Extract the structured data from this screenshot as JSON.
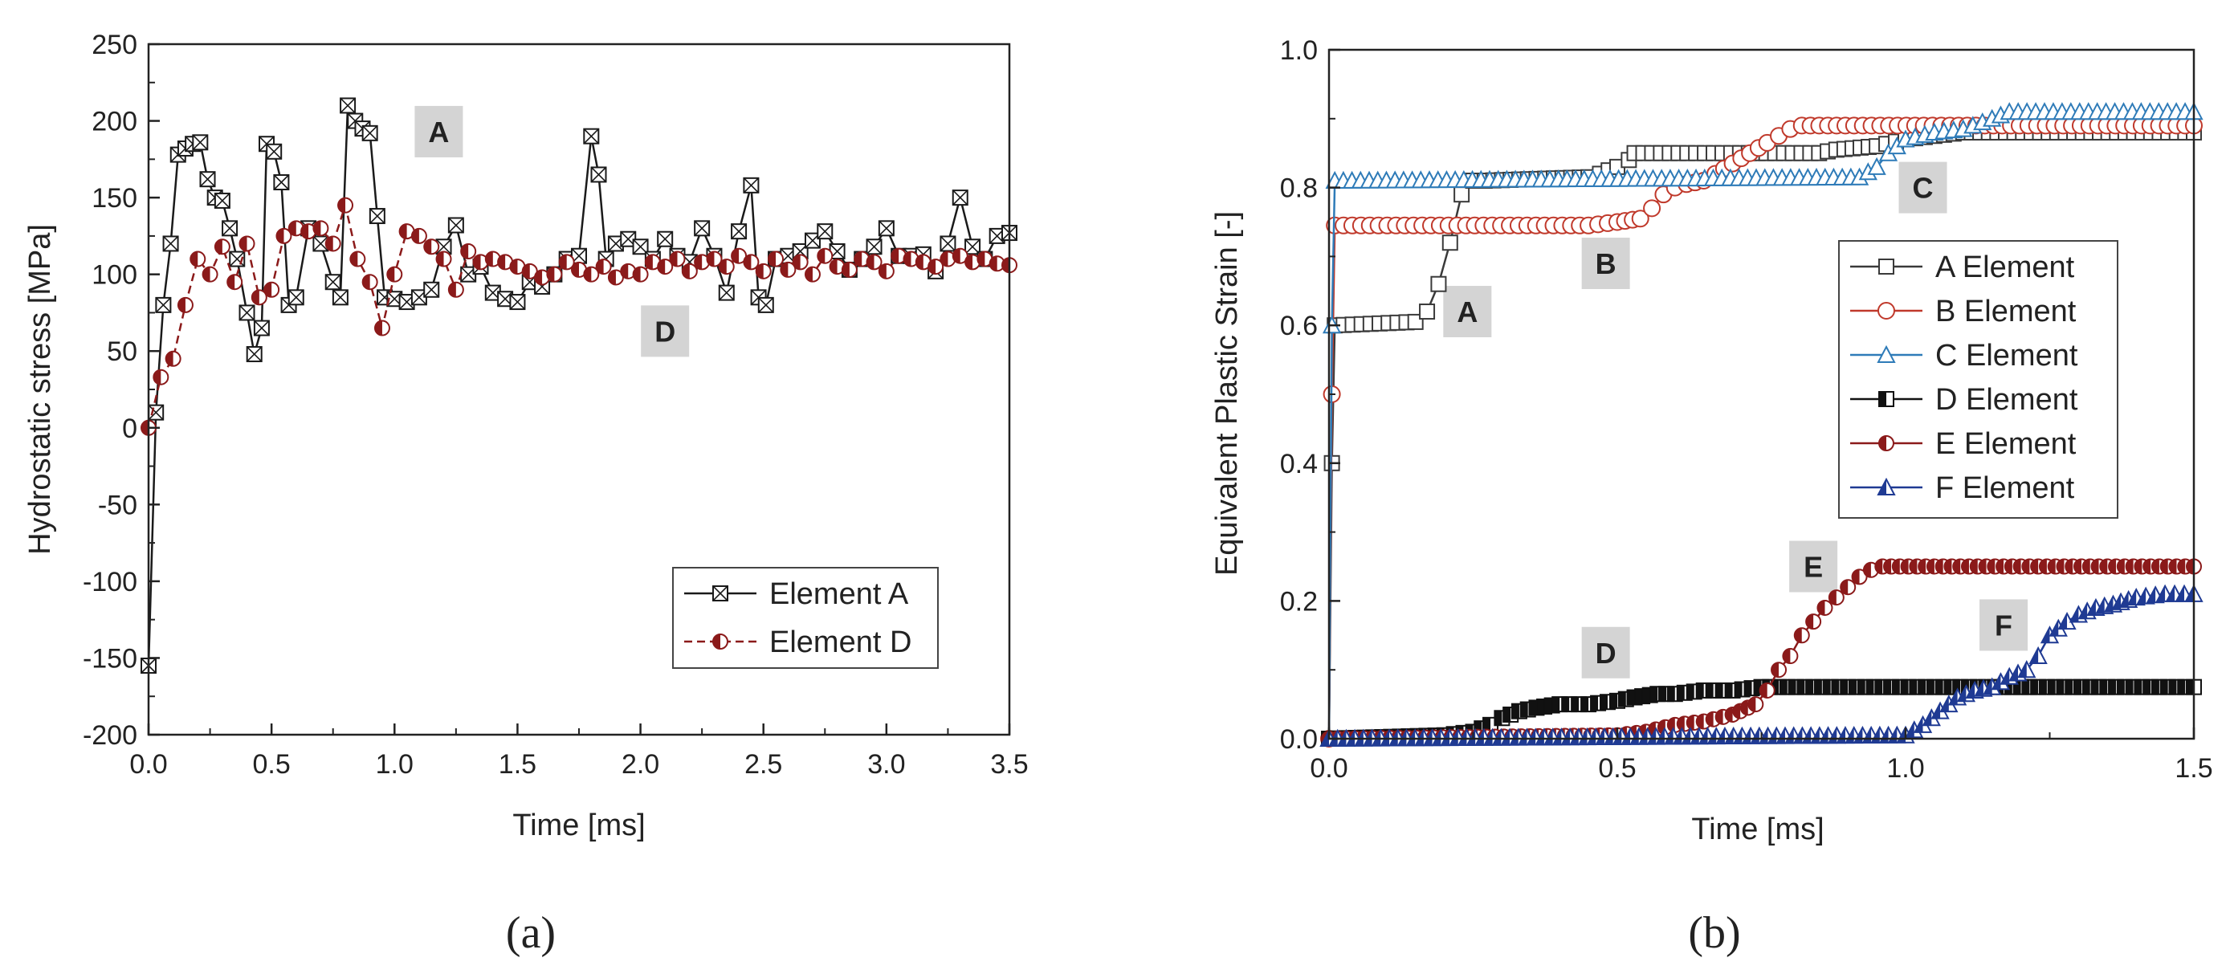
{
  "chart_data": [
    {
      "id": "a",
      "type": "line",
      "panel_label": "(a)",
      "xlabel": "Time [ms]",
      "ylabel": "Hydrostatic stress [MPa]",
      "xlim": [
        0,
        3.5
      ],
      "ylim": [
        -200,
        250
      ],
      "xticks": [
        0.0,
        0.5,
        1.0,
        1.5,
        2.0,
        2.5,
        3.0,
        3.5
      ],
      "yticks": [
        -200,
        -150,
        -100,
        -50,
        0,
        50,
        100,
        150,
        200,
        250
      ],
      "xtick_labels": [
        "0.0",
        "0.5",
        "1.0",
        "1.5",
        "2.0",
        "2.5",
        "3.0",
        "3.5"
      ],
      "ytick_labels": [
        "-200",
        "-150",
        "-100",
        "-50",
        "0",
        "50",
        "100",
        "150",
        "200",
        "250"
      ],
      "grid": false,
      "legend_position": "bottom-right",
      "annotations": [
        {
          "text": "A",
          "x": 1.18,
          "y": 193
        },
        {
          "text": "D",
          "x": 2.1,
          "y": 63
        }
      ],
      "series": [
        {
          "name": "Element A",
          "color": "#1a1a1a",
          "dash": "solid",
          "marker": "crossed-square",
          "x": [
            0.0,
            0.03,
            0.06,
            0.09,
            0.12,
            0.15,
            0.18,
            0.21,
            0.24,
            0.27,
            0.3,
            0.33,
            0.36,
            0.4,
            0.43,
            0.46,
            0.48,
            0.51,
            0.54,
            0.57,
            0.6,
            0.65,
            0.7,
            0.75,
            0.78,
            0.81,
            0.84,
            0.87,
            0.9,
            0.93,
            0.96,
            1.0,
            1.05,
            1.1,
            1.15,
            1.2,
            1.25,
            1.3,
            1.35,
            1.4,
            1.45,
            1.5,
            1.55,
            1.6,
            1.65,
            1.7,
            1.75,
            1.8,
            1.83,
            1.86,
            1.9,
            1.95,
            2.0,
            2.05,
            2.1,
            2.15,
            2.2,
            2.25,
            2.3,
            2.35,
            2.4,
            2.45,
            2.48,
            2.51,
            2.55,
            2.6,
            2.65,
            2.7,
            2.75,
            2.8,
            2.85,
            2.9,
            2.95,
            3.0,
            3.05,
            3.1,
            3.15,
            3.2,
            3.25,
            3.3,
            3.35,
            3.4,
            3.45,
            3.5
          ],
          "y": [
            -155,
            10,
            80,
            120,
            178,
            182,
            185,
            186,
            162,
            150,
            148,
            130,
            110,
            75,
            48,
            65,
            185,
            180,
            160,
            80,
            85,
            130,
            120,
            95,
            85,
            210,
            200,
            195,
            192,
            138,
            85,
            84,
            82,
            85,
            90,
            118,
            132,
            100,
            105,
            88,
            84,
            82,
            95,
            92,
            100,
            110,
            112,
            190,
            165,
            110,
            120,
            123,
            118,
            110,
            123,
            112,
            108,
            130,
            112,
            88,
            128,
            158,
            85,
            80,
            110,
            112,
            115,
            122,
            128,
            115,
            103,
            110,
            118,
            130,
            112,
            112,
            113,
            102,
            120,
            150,
            118,
            110,
            125,
            127
          ]
        },
        {
          "name": "Element D",
          "color": "#8b1a1a",
          "dash": "dashed",
          "marker": "half-circle",
          "x": [
            0.0,
            0.05,
            0.1,
            0.15,
            0.2,
            0.25,
            0.3,
            0.35,
            0.4,
            0.45,
            0.5,
            0.55,
            0.6,
            0.65,
            0.7,
            0.75,
            0.8,
            0.85,
            0.9,
            0.95,
            1.0,
            1.05,
            1.1,
            1.15,
            1.2,
            1.25,
            1.3,
            1.35,
            1.4,
            1.45,
            1.5,
            1.55,
            1.6,
            1.65,
            1.7,
            1.75,
            1.8,
            1.85,
            1.9,
            1.95,
            2.0,
            2.05,
            2.1,
            2.15,
            2.2,
            2.25,
            2.3,
            2.35,
            2.4,
            2.45,
            2.5,
            2.55,
            2.6,
            2.65,
            2.7,
            2.75,
            2.8,
            2.85,
            2.9,
            2.95,
            3.0,
            3.05,
            3.1,
            3.15,
            3.2,
            3.25,
            3.3,
            3.35,
            3.4,
            3.45,
            3.5
          ],
          "y": [
            0,
            33,
            45,
            80,
            110,
            100,
            118,
            95,
            120,
            85,
            90,
            125,
            130,
            128,
            130,
            120,
            145,
            110,
            95,
            65,
            100,
            128,
            125,
            118,
            110,
            90,
            115,
            108,
            110,
            108,
            105,
            102,
            98,
            100,
            108,
            103,
            100,
            105,
            98,
            102,
            100,
            108,
            105,
            110,
            102,
            108,
            110,
            105,
            112,
            108,
            102,
            110,
            103,
            108,
            100,
            112,
            105,
            103,
            110,
            108,
            102,
            112,
            110,
            108,
            105,
            110,
            112,
            108,
            110,
            107,
            106
          ]
        }
      ]
    },
    {
      "id": "b",
      "type": "line",
      "panel_label": "(b)",
      "xlabel": "Time [ms]",
      "ylabel": "Equivalent Plastic Strain [-]",
      "xlim": [
        0,
        1.5
      ],
      "ylim": [
        0,
        1.0
      ],
      "xticks": [
        0.0,
        0.5,
        1.0,
        1.5
      ],
      "yticks": [
        0.0,
        0.2,
        0.4,
        0.6,
        0.8,
        1.0
      ],
      "xtick_labels": [
        "0.0",
        "0.5",
        "1.0",
        "1.5"
      ],
      "ytick_labels": [
        "0.0",
        "0.2",
        "0.4",
        "0.6",
        "0.8",
        "1.0"
      ],
      "grid": false,
      "legend_position": "middle-right",
      "annotations": [
        {
          "text": "A",
          "x": 0.24,
          "y": 0.62
        },
        {
          "text": "B",
          "x": 0.48,
          "y": 0.69
        },
        {
          "text": "C",
          "x": 1.03,
          "y": 0.8
        },
        {
          "text": "D",
          "x": 0.48,
          "y": 0.125
        },
        {
          "text": "E",
          "x": 0.84,
          "y": 0.25
        },
        {
          "text": "F",
          "x": 1.17,
          "y": 0.165
        }
      ],
      "series": [
        {
          "name": "A Element",
          "color": "#3a3a3a",
          "marker": "open-square",
          "x": [
            0.0,
            0.005,
            0.01,
            0.15,
            0.17,
            0.19,
            0.21,
            0.23,
            0.25,
            0.27,
            0.45,
            0.47,
            0.5,
            0.52,
            0.53,
            0.85,
            0.88,
            0.95,
            1.0,
            1.05,
            1.1,
            1.5
          ],
          "y": [
            0.0,
            0.4,
            0.6,
            0.605,
            0.62,
            0.66,
            0.72,
            0.79,
            0.81,
            0.81,
            0.815,
            0.82,
            0.83,
            0.84,
            0.85,
            0.85,
            0.855,
            0.86,
            0.87,
            0.875,
            0.88,
            0.88
          ]
        },
        {
          "name": "B Element",
          "color": "#c0392b",
          "marker": "open-circle",
          "x": [
            0.0,
            0.005,
            0.01,
            0.45,
            0.5,
            0.54,
            0.56,
            0.58,
            0.6,
            0.62,
            0.65,
            0.67,
            0.7,
            0.73,
            0.76,
            0.78,
            0.8,
            0.82,
            1.5
          ],
          "y": [
            0.0,
            0.5,
            0.745,
            0.745,
            0.75,
            0.755,
            0.77,
            0.79,
            0.8,
            0.805,
            0.81,
            0.82,
            0.835,
            0.85,
            0.865,
            0.875,
            0.885,
            0.89,
            0.89
          ]
        },
        {
          "name": "C Element",
          "color": "#2e7bb8",
          "marker": "open-triangle",
          "x": [
            0.0,
            0.005,
            0.01,
            0.92,
            0.95,
            0.97,
            1.0,
            1.05,
            1.1,
            1.15,
            1.18,
            1.5
          ],
          "y": [
            0.0,
            0.6,
            0.81,
            0.815,
            0.83,
            0.85,
            0.87,
            0.88,
            0.885,
            0.9,
            0.91,
            0.91
          ]
        },
        {
          "name": "D Element",
          "color": "#111111",
          "marker": "half-square",
          "x": [
            0.0,
            0.2,
            0.25,
            0.28,
            0.3,
            0.33,
            0.36,
            0.4,
            0.45,
            0.5,
            0.53,
            0.57,
            0.6,
            0.65,
            0.7,
            0.75,
            1.5
          ],
          "y": [
            0.0,
            0.005,
            0.01,
            0.02,
            0.03,
            0.04,
            0.045,
            0.05,
            0.05,
            0.055,
            0.06,
            0.065,
            0.065,
            0.07,
            0.07,
            0.075,
            0.075
          ]
        },
        {
          "name": "E Element",
          "color": "#8b1a1a",
          "marker": "half-circle",
          "x": [
            0.0,
            0.5,
            0.55,
            0.6,
            0.65,
            0.7,
            0.74,
            0.76,
            0.78,
            0.8,
            0.82,
            0.84,
            0.86,
            0.88,
            0.9,
            0.92,
            0.94,
            0.96,
            1.5
          ],
          "y": [
            0.0,
            0.005,
            0.01,
            0.02,
            0.025,
            0.035,
            0.05,
            0.07,
            0.1,
            0.12,
            0.15,
            0.17,
            0.19,
            0.205,
            0.22,
            0.235,
            0.245,
            0.25,
            0.25
          ]
        },
        {
          "name": "F Element",
          "color": "#1f3a93",
          "marker": "half-triangle",
          "x": [
            0.0,
            1.0,
            1.03,
            1.06,
            1.09,
            1.12,
            1.15,
            1.18,
            1.21,
            1.23,
            1.25,
            1.28,
            1.3,
            1.33,
            1.36,
            1.4,
            1.45,
            1.5
          ],
          "y": [
            0.0,
            0.005,
            0.02,
            0.04,
            0.06,
            0.07,
            0.075,
            0.09,
            0.1,
            0.12,
            0.15,
            0.17,
            0.18,
            0.19,
            0.195,
            0.205,
            0.21,
            0.21
          ]
        }
      ]
    }
  ]
}
